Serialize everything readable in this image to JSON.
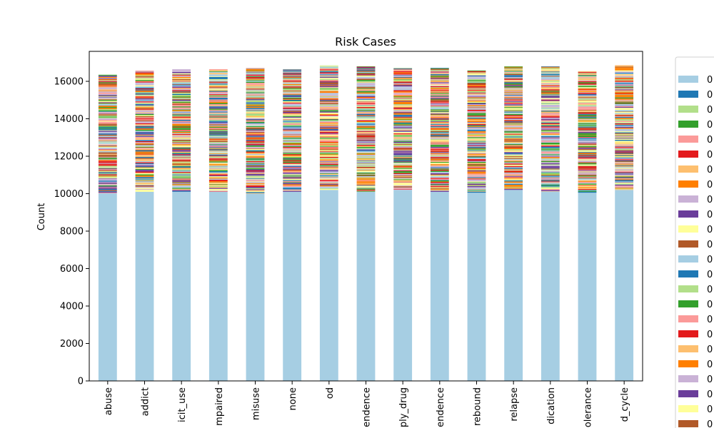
{
  "chart_data": {
    "type": "bar",
    "stacked": true,
    "title": "Risk Cases",
    "xlabel": "",
    "ylabel": "Count",
    "ylim": [
      0,
      17600
    ],
    "yticks": [
      0,
      2000,
      4000,
      6000,
      8000,
      10000,
      12000,
      14000,
      16000
    ],
    "categories": [
      "abuse",
      "addict",
      "illicit_use",
      "impaired",
      "misuse",
      "none",
      "od",
      "dependence",
      "supply_drug",
      "dependence",
      "rebound",
      "relapse",
      "medication",
      "tolerance",
      "withdrawal_cycle"
    ],
    "visible_category_labels": [
      "abuse",
      "addict",
      "icit_use",
      "mpaired",
      "misuse",
      "none",
      "od",
      "endence",
      "ply_drug",
      "endence",
      "rebound",
      "relapse",
      "dication",
      "olerance",
      "d_cycle"
    ],
    "base_series": {
      "name": "0",
      "values": [
        10000,
        10100,
        10100,
        10100,
        10000,
        10100,
        10200,
        10100,
        10200,
        10100,
        10050,
        10200,
        10100,
        10050,
        10200
      ]
    },
    "totals": [
      16350,
      16550,
      16650,
      16650,
      16700,
      16650,
      16850,
      16800,
      16700,
      16720,
      16580,
      16800,
      16800,
      16550,
      16850
    ],
    "palette": [
      "#a6cee3",
      "#1f78b4",
      "#b2df8a",
      "#33a02c",
      "#fb9a99",
      "#e31a1c",
      "#fdbf6f",
      "#ff7f00",
      "#cab2d6",
      "#6a3d9a",
      "#ffff99",
      "#b15928"
    ],
    "legend": {
      "placement": "outside-right",
      "entries": [
        {
          "label": "0",
          "color": "#a6cee3"
        },
        {
          "label": "0",
          "color": "#1f78b4"
        },
        {
          "label": "0",
          "color": "#b2df8a"
        },
        {
          "label": "0",
          "color": "#33a02c"
        },
        {
          "label": "0",
          "color": "#fb9a99"
        },
        {
          "label": "0",
          "color": "#e31a1c"
        },
        {
          "label": "0",
          "color": "#fdbf6f"
        },
        {
          "label": "0",
          "color": "#ff7f00"
        },
        {
          "label": "0",
          "color": "#cab2d6"
        },
        {
          "label": "0",
          "color": "#6a3d9a"
        },
        {
          "label": "0",
          "color": "#ffff99"
        },
        {
          "label": "0",
          "color": "#b15928"
        },
        {
          "label": "0",
          "color": "#a6cee3"
        },
        {
          "label": "0",
          "color": "#1f78b4"
        },
        {
          "label": "0",
          "color": "#b2df8a"
        },
        {
          "label": "0",
          "color": "#33a02c"
        },
        {
          "label": "0",
          "color": "#fb9a99"
        },
        {
          "label": "0",
          "color": "#e31a1c"
        },
        {
          "label": "0",
          "color": "#fdbf6f"
        },
        {
          "label": "0",
          "color": "#ff7f00"
        },
        {
          "label": "0",
          "color": "#cab2d6"
        },
        {
          "label": "0",
          "color": "#6a3d9a"
        },
        {
          "label": "0",
          "color": "#ffff99"
        },
        {
          "label": "0",
          "color": "#b15928"
        }
      ]
    },
    "grid": false
  }
}
